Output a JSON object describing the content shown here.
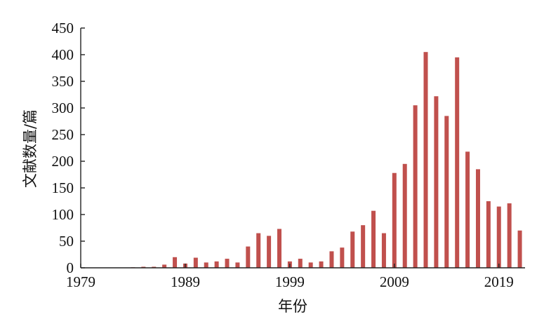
{
  "chart_data": {
    "type": "bar",
    "title": "",
    "xlabel": "年份",
    "ylabel": "文献数量/篇",
    "x": [
      1979,
      1980,
      1981,
      1982,
      1983,
      1984,
      1985,
      1986,
      1987,
      1988,
      1989,
      1990,
      1991,
      1992,
      1993,
      1994,
      1995,
      1996,
      1997,
      1998,
      1999,
      2000,
      2001,
      2002,
      2003,
      2004,
      2005,
      2006,
      2007,
      2008,
      2009,
      2010,
      2011,
      2012,
      2013,
      2014,
      2015,
      2016,
      2017,
      2018,
      2019,
      2020,
      2021
    ],
    "values": [
      0,
      0,
      0,
      0,
      0,
      1,
      2,
      2,
      6,
      20,
      8,
      19,
      10,
      12,
      17,
      10,
      40,
      65,
      60,
      73,
      12,
      17,
      10,
      12,
      31,
      38,
      68,
      80,
      107,
      65,
      178,
      195,
      305,
      405,
      322,
      285,
      395,
      218,
      185,
      125,
      115,
      121,
      70
    ],
    "ylim": [
      0,
      450
    ],
    "xlim": [
      1979,
      2021.5
    ],
    "yticks": [
      0,
      50,
      100,
      150,
      200,
      250,
      300,
      350,
      400,
      450
    ],
    "xticks": [
      1979,
      1989,
      1999,
      2009,
      2019
    ],
    "bar_color": "#c0504d",
    "axis_color": "#222222",
    "grid": false,
    "legend": "none"
  }
}
